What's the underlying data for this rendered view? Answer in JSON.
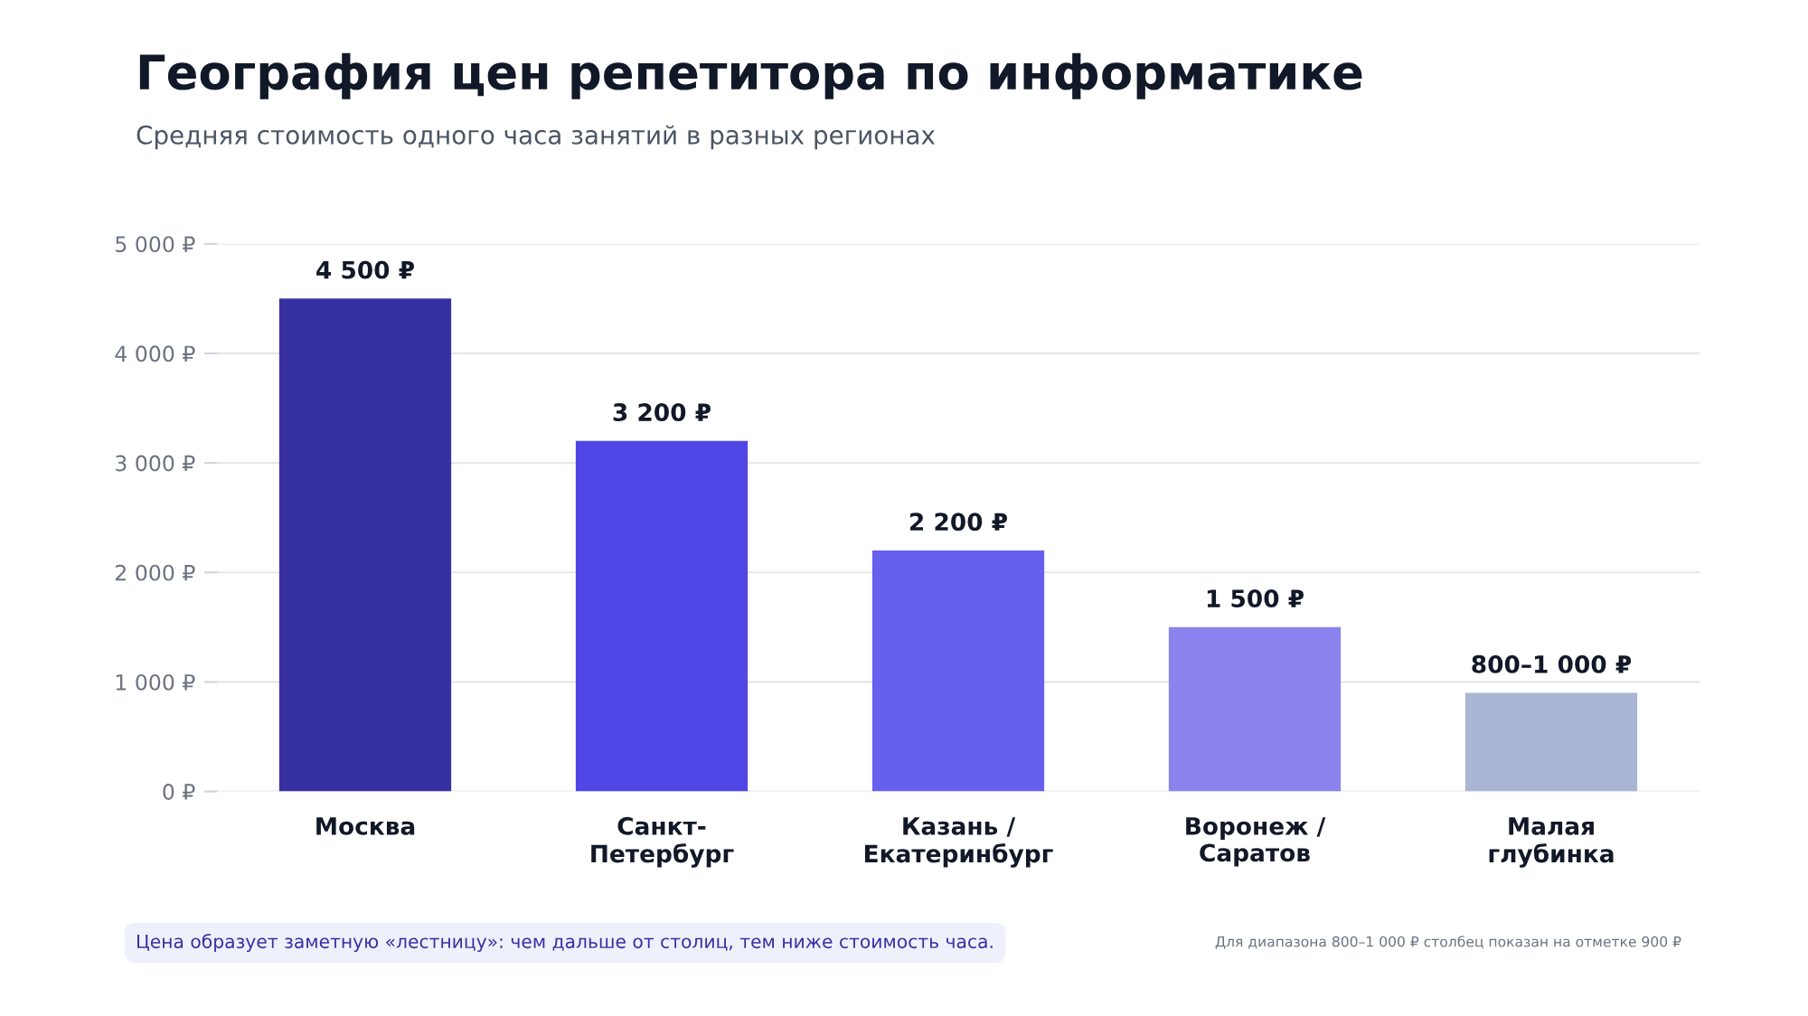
{
  "chart_data": {
    "type": "bar",
    "title": "География цен репетитора по информатике",
    "subtitle": "Средняя стоимость одного часа занятий в разных регионах",
    "categories": [
      "Москва",
      "Санкт-\nПетербург",
      "Казань /\nЕкатеринбург",
      "Воронеж /\nСаратов",
      "Малая\nглубинка"
    ],
    "values": [
      4500,
      3200,
      2200,
      1500,
      900
    ],
    "colors": [
      "#3730a3",
      "#4f46e5",
      "#6760ef",
      "#8b84ee",
      "#a9b6d3"
    ],
    "value_labels": [
      "4 500 ₽",
      "3 200 ₽",
      "2 200 ₽",
      "1 500 ₽",
      "800–1 000 ₽"
    ],
    "ylim": [
      0,
      5000
    ],
    "yticks": [
      {
        "value": 0,
        "label": "0 ₽"
      },
      {
        "value": 1000,
        "label": "1 000 ₽"
      },
      {
        "value": 2000,
        "label": "2 000 ₽"
      },
      {
        "value": 3000,
        "label": "3 000 ₽"
      },
      {
        "value": 4000,
        "label": "4 000 ₽"
      },
      {
        "value": 5000,
        "label": "5 000 ₽"
      }
    ],
    "grid": "y",
    "legend": false,
    "annotations": [
      "Цена образует заметную «лестницу»: чем дальше от столиц, тем ниже стоимость часа.",
      "Для диапазона 800–1 000 ₽ столбец показан на отметке 900 ₽"
    ]
  }
}
